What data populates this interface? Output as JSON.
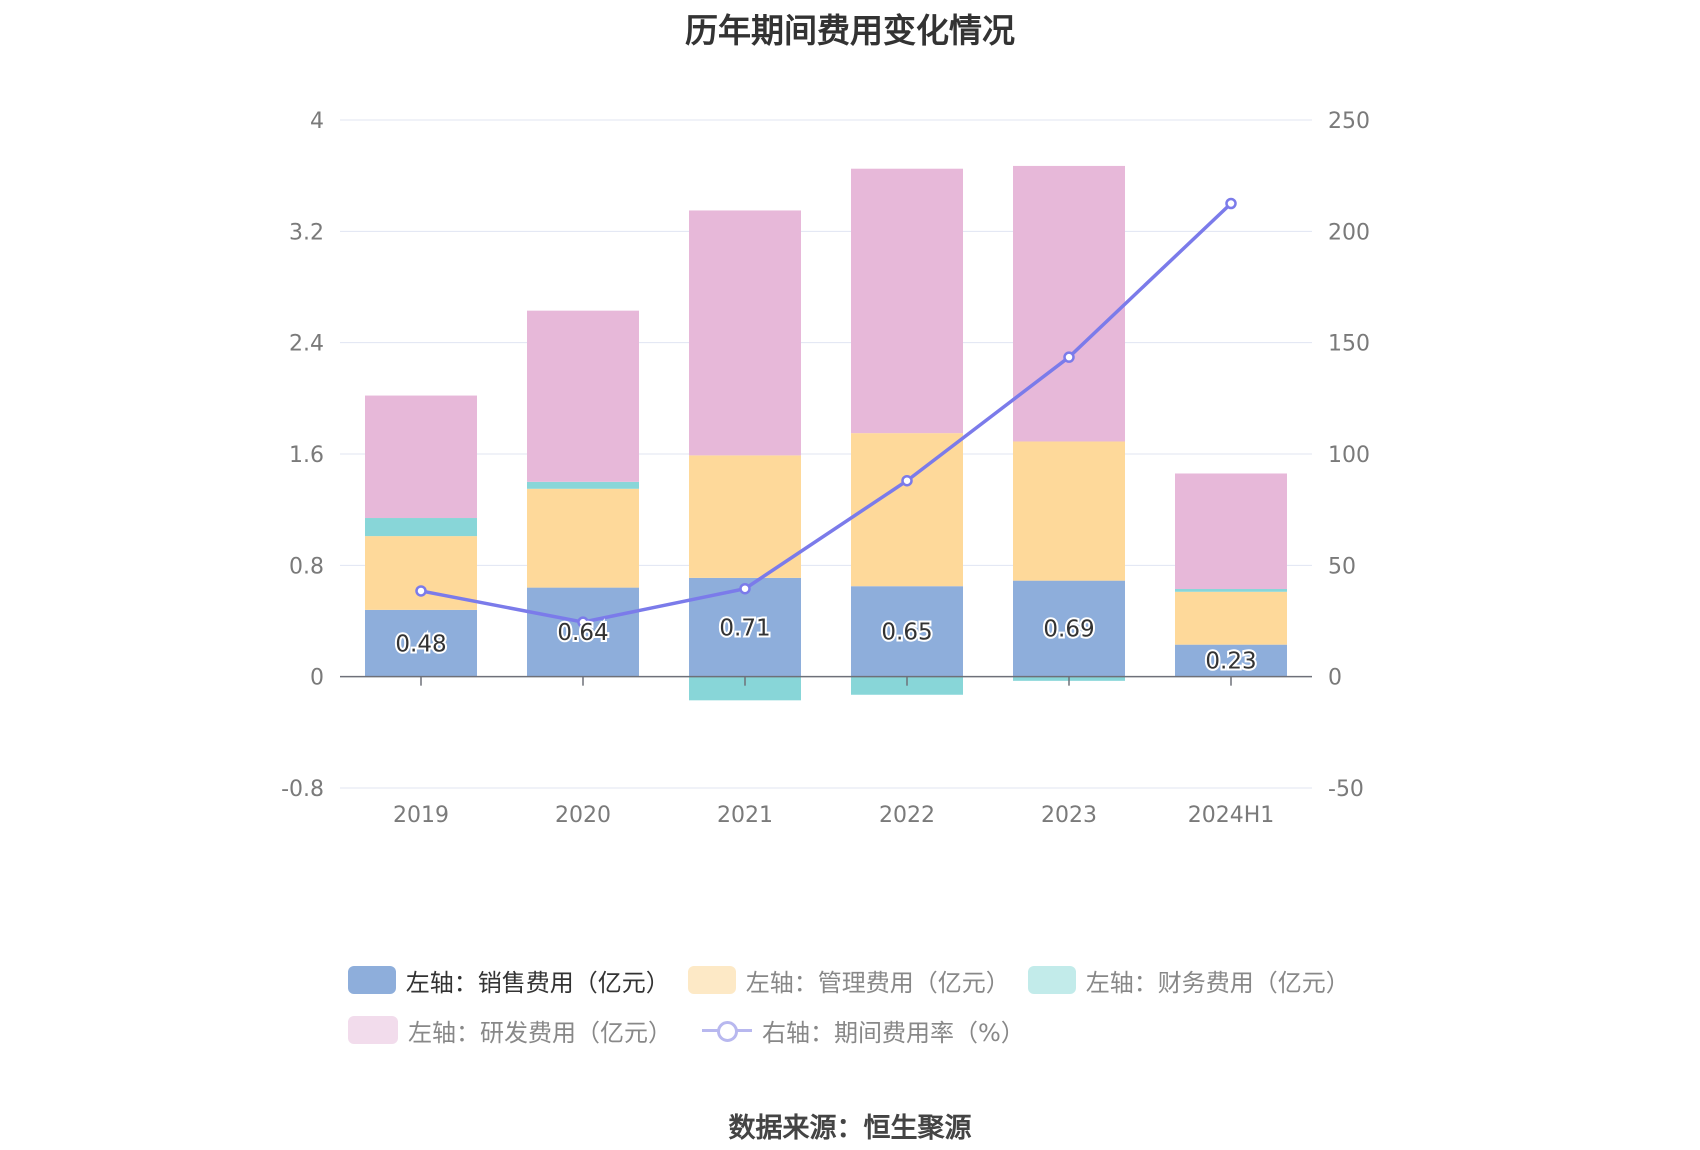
{
  "title": "历年期间费用变化情况",
  "source": "数据来源：恒生聚源",
  "legend": [
    {
      "label": "左轴：销售费用（亿元）",
      "color": "#8eaedb",
      "kind": "bar",
      "active": true
    },
    {
      "label": "左轴：管理费用（亿元）",
      "color": "#fde9c6",
      "kind": "bar",
      "active": false
    },
    {
      "label": "左轴：财务费用（亿元）",
      "color": "#c2ebea",
      "kind": "bar",
      "active": false
    },
    {
      "label": "左轴：研发费用（亿元）",
      "color": "#f2dcec",
      "kind": "bar",
      "active": false
    },
    {
      "label": "右轴：期间费用率（%）",
      "color": "#b8b8ef",
      "kind": "line",
      "active": false
    }
  ],
  "chart_data": {
    "type": "bar",
    "categories": [
      "2019",
      "2020",
      "2021",
      "2022",
      "2023",
      "2024H1"
    ],
    "series": [
      {
        "name": "左轴：销售费用（亿元）",
        "axis": "left",
        "color": "#8eaedb",
        "values": [
          0.48,
          0.64,
          0.71,
          0.65,
          0.69,
          0.23
        ],
        "labels": [
          "0.48",
          "0.64",
          "0.71",
          "0.65",
          "0.69",
          "0.23"
        ]
      },
      {
        "name": "左轴：管理费用（亿元）",
        "axis": "left",
        "color": "#fed99a",
        "values": [
          0.53,
          0.71,
          0.88,
          1.1,
          1.0,
          0.38
        ]
      },
      {
        "name": "左轴：财务费用（亿元）",
        "axis": "left",
        "color": "#88d6d8",
        "values": [
          0.13,
          0.05,
          -0.17,
          -0.13,
          -0.03,
          0.02
        ]
      },
      {
        "name": "左轴：研发费用（亿元）",
        "axis": "left",
        "color": "#e7b8d9",
        "values": [
          0.88,
          1.23,
          1.76,
          1.9,
          1.98,
          0.83
        ]
      },
      {
        "name": "右轴：期间费用率（%）",
        "axis": "right",
        "type": "line",
        "color": "#7b7bea",
        "values": [
          38.5,
          24.5,
          39.5,
          88,
          143.5,
          212.5
        ]
      }
    ],
    "y_left": {
      "min": -0.8,
      "max": 4,
      "ticks": [
        "4",
        "3.2",
        "2.4",
        "1.6",
        "0.8",
        "0",
        "-0.8"
      ]
    },
    "y_right": {
      "min": -50,
      "max": 250,
      "ticks": [
        "250",
        "200",
        "150",
        "100",
        "50",
        "0",
        "-50"
      ]
    },
    "grid": true,
    "legend_position": "bottom"
  }
}
